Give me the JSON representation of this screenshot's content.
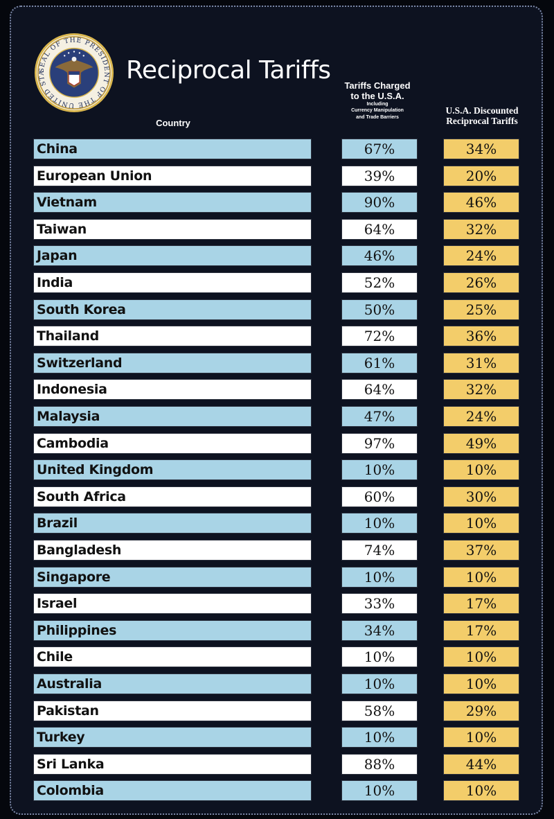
{
  "title": "Reciprocal Tariffs",
  "seal_text": "SEAL OF THE PRESIDENT OF THE UNITED STATES",
  "headers": {
    "country": "Country",
    "charged_main_1": "Tariffs Charged",
    "charged_main_2": "to the U.S.A.",
    "charged_sub_1": "Including",
    "charged_sub_2": "Currency Manipulation",
    "charged_sub_3": "and Trade Barriers",
    "discounted_1": "U.S.A. Discounted",
    "discounted_2": "Reciprocal Tariffs"
  },
  "colors": {
    "blue_row": "#a9d4e6",
    "white_row": "#ffffff",
    "gold_cell": "#f3cd6a",
    "background": "#0d1220"
  },
  "rows": [
    {
      "country": "China",
      "charged": "67%",
      "reciprocal": "34%"
    },
    {
      "country": "European Union",
      "charged": "39%",
      "reciprocal": "20%"
    },
    {
      "country": "Vietnam",
      "charged": "90%",
      "reciprocal": "46%"
    },
    {
      "country": "Taiwan",
      "charged": "64%",
      "reciprocal": "32%"
    },
    {
      "country": "Japan",
      "charged": "46%",
      "reciprocal": "24%"
    },
    {
      "country": "India",
      "charged": "52%",
      "reciprocal": "26%"
    },
    {
      "country": "South Korea",
      "charged": "50%",
      "reciprocal": "25%"
    },
    {
      "country": "Thailand",
      "charged": "72%",
      "reciprocal": "36%"
    },
    {
      "country": "Switzerland",
      "charged": "61%",
      "reciprocal": "31%"
    },
    {
      "country": "Indonesia",
      "charged": "64%",
      "reciprocal": "32%"
    },
    {
      "country": "Malaysia",
      "charged": "47%",
      "reciprocal": "24%"
    },
    {
      "country": "Cambodia",
      "charged": "97%",
      "reciprocal": "49%"
    },
    {
      "country": "United Kingdom",
      "charged": "10%",
      "reciprocal": "10%"
    },
    {
      "country": "South Africa",
      "charged": "60%",
      "reciprocal": "30%"
    },
    {
      "country": "Brazil",
      "charged": "10%",
      "reciprocal": "10%"
    },
    {
      "country": "Bangladesh",
      "charged": "74%",
      "reciprocal": "37%"
    },
    {
      "country": "Singapore",
      "charged": "10%",
      "reciprocal": "10%"
    },
    {
      "country": "Israel",
      "charged": "33%",
      "reciprocal": "17%"
    },
    {
      "country": "Philippines",
      "charged": "34%",
      "reciprocal": "17%"
    },
    {
      "country": "Chile",
      "charged": "10%",
      "reciprocal": "10%"
    },
    {
      "country": "Australia",
      "charged": "10%",
      "reciprocal": "10%"
    },
    {
      "country": "Pakistan",
      "charged": "58%",
      "reciprocal": "29%"
    },
    {
      "country": "Turkey",
      "charged": "10%",
      "reciprocal": "10%"
    },
    {
      "country": "Sri Lanka",
      "charged": "88%",
      "reciprocal": "44%"
    },
    {
      "country": "Colombia",
      "charged": "10%",
      "reciprocal": "10%"
    }
  ]
}
